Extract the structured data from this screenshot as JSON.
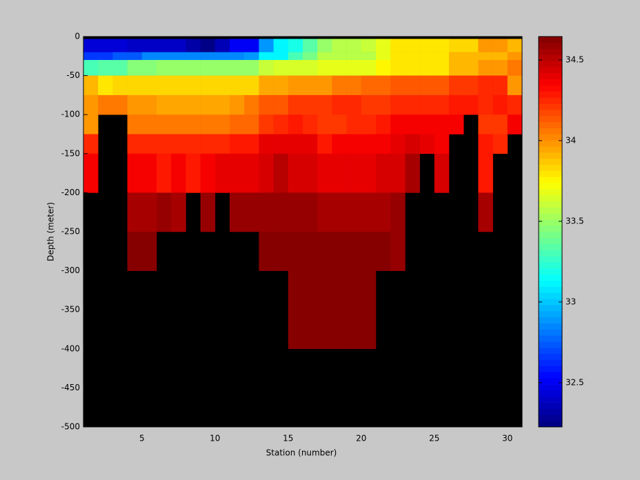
{
  "chart_data": {
    "type": "heatmap",
    "colormap": "jet",
    "xlabel": "Station (number)",
    "ylabel": "Depth (meter)",
    "x_edges": [
      1,
      2,
      3,
      4,
      5,
      6,
      7,
      8,
      9,
      10,
      11,
      12,
      13,
      14,
      15,
      16,
      17,
      18,
      19,
      20,
      21,
      22,
      23,
      24,
      25,
      26,
      27,
      28,
      29,
      30,
      31
    ],
    "y_edges": [
      -3,
      -20,
      -30,
      -50,
      -75,
      -100,
      -125,
      -150,
      -200,
      -250,
      -300,
      -350,
      -400
    ],
    "values": [
      [
        32.45,
        32.45,
        32.45,
        32.38,
        32.38,
        32.4,
        32.4,
        32.32,
        32.25,
        32.35,
        32.5,
        32.5,
        32.9,
        33.1,
        33.2,
        33.35,
        33.5,
        33.55,
        33.55,
        33.6,
        33.7,
        33.8,
        33.8,
        33.8,
        33.8,
        33.85,
        33.85,
        34.0,
        34.0,
        33.9
      ],
      [
        32.65,
        32.65,
        32.75,
        32.75,
        32.85,
        32.85,
        32.85,
        32.85,
        32.85,
        32.85,
        32.85,
        32.9,
        33.1,
        33.1,
        33.3,
        33.4,
        33.55,
        33.55,
        33.55,
        33.55,
        33.7,
        33.8,
        33.8,
        33.8,
        33.8,
        33.9,
        33.9,
        33.9,
        33.9,
        34.0
      ],
      [
        33.3,
        33.35,
        33.35,
        33.45,
        33.45,
        33.5,
        33.5,
        33.5,
        33.5,
        33.5,
        33.5,
        33.5,
        33.6,
        33.65,
        33.65,
        33.65,
        33.7,
        33.7,
        33.7,
        33.7,
        33.75,
        33.8,
        33.8,
        33.8,
        33.8,
        33.9,
        33.9,
        34.0,
        34.0,
        34.05
      ],
      [
        33.9,
        33.8,
        33.85,
        33.85,
        33.85,
        33.85,
        33.85,
        33.85,
        33.85,
        33.85,
        33.85,
        33.85,
        33.95,
        33.95,
        34.0,
        34.0,
        34.0,
        34.05,
        34.05,
        34.1,
        34.1,
        34.15,
        34.15,
        34.15,
        34.15,
        34.2,
        34.2,
        34.25,
        34.25,
        34.0
      ],
      [
        34.0,
        34.05,
        34.05,
        34.0,
        34.0,
        33.95,
        33.95,
        33.95,
        33.95,
        33.95,
        34.0,
        34.05,
        34.15,
        34.15,
        34.2,
        34.2,
        34.2,
        34.25,
        34.25,
        34.2,
        34.2,
        34.25,
        34.25,
        34.25,
        34.25,
        34.3,
        34.3,
        34.25,
        34.3,
        34.25
      ],
      [
        34.0,
        null,
        null,
        34.05,
        34.05,
        34.05,
        34.05,
        34.05,
        34.05,
        34.05,
        34.1,
        34.1,
        34.2,
        34.25,
        34.3,
        34.25,
        34.2,
        34.2,
        34.25,
        34.25,
        34.3,
        34.35,
        34.35,
        34.35,
        34.35,
        34.35,
        null,
        34.2,
        34.2,
        34.35
      ],
      [
        34.25,
        null,
        null,
        34.25,
        34.25,
        34.25,
        34.25,
        34.25,
        34.25,
        34.25,
        34.3,
        34.3,
        34.4,
        34.4,
        34.4,
        34.4,
        34.3,
        34.35,
        34.35,
        34.35,
        34.35,
        34.4,
        34.45,
        34.4,
        34.35,
        null,
        null,
        34.3,
        34.25,
        null
      ],
      [
        34.35,
        null,
        null,
        34.35,
        34.35,
        34.3,
        34.35,
        34.3,
        34.35,
        34.4,
        34.4,
        34.4,
        34.45,
        34.5,
        34.45,
        34.45,
        34.4,
        34.4,
        34.4,
        34.4,
        34.45,
        34.45,
        34.55,
        null,
        34.45,
        null,
        null,
        34.3,
        null,
        null
      ],
      [
        null,
        null,
        null,
        34.55,
        34.55,
        34.6,
        34.55,
        null,
        34.58,
        null,
        34.6,
        34.6,
        34.6,
        34.6,
        34.6,
        34.6,
        34.55,
        34.55,
        34.55,
        34.55,
        34.55,
        34.6,
        null,
        null,
        null,
        null,
        null,
        34.55,
        null,
        null
      ],
      [
        null,
        null,
        null,
        34.62,
        34.62,
        null,
        null,
        null,
        null,
        null,
        null,
        null,
        34.62,
        34.62,
        34.62,
        34.62,
        34.62,
        34.62,
        34.62,
        34.62,
        34.62,
        34.6,
        null,
        null,
        null,
        null,
        null,
        null,
        null,
        null
      ],
      [
        null,
        null,
        null,
        null,
        null,
        null,
        null,
        null,
        null,
        null,
        null,
        null,
        null,
        null,
        34.63,
        34.63,
        34.63,
        34.63,
        34.63,
        34.63,
        null,
        null,
        null,
        null,
        null,
        null,
        null,
        null,
        null,
        null
      ],
      [
        null,
        null,
        null,
        null,
        null,
        null,
        null,
        null,
        null,
        null,
        null,
        null,
        null,
        null,
        34.63,
        34.63,
        34.63,
        34.63,
        34.63,
        34.63,
        null,
        null,
        null,
        null,
        null,
        null,
        null,
        null,
        null,
        null
      ]
    ],
    "xlim": [
      1,
      31
    ],
    "xticks": [
      5,
      10,
      15,
      20,
      25,
      30
    ],
    "ylim": [
      -500,
      0
    ],
    "yticks": [
      0,
      -50,
      -100,
      -150,
      -200,
      -250,
      -300,
      -350,
      -400,
      -450,
      -500
    ],
    "clim": [
      32.226,
      34.645
    ],
    "cticks": [
      32.5,
      33,
      33.5,
      34,
      34.5
    ]
  }
}
